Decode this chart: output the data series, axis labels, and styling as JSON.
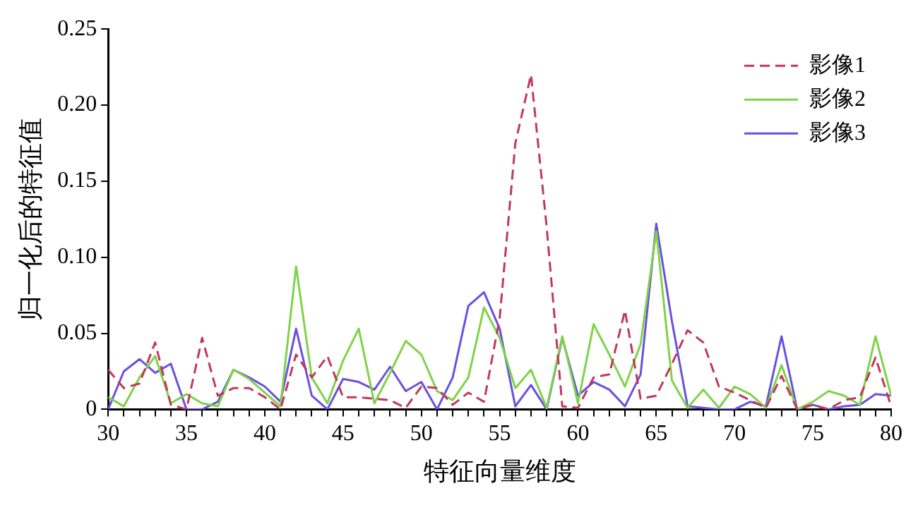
{
  "chart_data": {
    "type": "line",
    "xlabel": "特征向量维度",
    "ylabel": "归一化后的特征值",
    "x": [
      30,
      31,
      32,
      33,
      34,
      35,
      36,
      37,
      38,
      39,
      40,
      41,
      42,
      43,
      44,
      45,
      46,
      47,
      48,
      49,
      50,
      51,
      52,
      53,
      54,
      55,
      56,
      57,
      58,
      59,
      60,
      61,
      62,
      63,
      64,
      65,
      66,
      67,
      68,
      69,
      70,
      71,
      72,
      73,
      74,
      75,
      76,
      77,
      78,
      79,
      80
    ],
    "series": [
      {
        "name": "影像1",
        "color": "#c2385c",
        "line_style": "dashed",
        "values": [
          0.026,
          0.014,
          0.017,
          0.044,
          0.003,
          0,
          0.047,
          0.009,
          0.014,
          0.014,
          0.008,
          0,
          0.036,
          0.021,
          0.035,
          0.008,
          0.008,
          0.007,
          0.006,
          0.001,
          0.015,
          0.014,
          0.003,
          0.011,
          0.005,
          0.06,
          0.175,
          0.22,
          0.12,
          0.002,
          0.001,
          0.021,
          0.023,
          0.065,
          0.007,
          0.009,
          0.03,
          0.052,
          0.044,
          0.015,
          0.011,
          0.006,
          0.001,
          0.022,
          0,
          0.003,
          0,
          0.006,
          0.008,
          0.034,
          0.002
        ]
      },
      {
        "name": "影像2",
        "color": "#7ed348",
        "line_style": "solid",
        "values": [
          0.008,
          0.002,
          0.021,
          0.035,
          0.004,
          0.01,
          0.004,
          0.002,
          0.026,
          0.02,
          0.011,
          0.002,
          0.094,
          0.021,
          0.004,
          0.032,
          0.053,
          0.004,
          0.024,
          0.045,
          0.036,
          0.012,
          0.006,
          0.021,
          0.067,
          0.047,
          0.014,
          0.026,
          0.001,
          0.048,
          0.004,
          0.056,
          0.036,
          0.015,
          0.043,
          0.117,
          0.019,
          0.001,
          0.013,
          0.001,
          0.015,
          0.01,
          0.001,
          0.029,
          0,
          0.005,
          0.012,
          0.009,
          0.003,
          0.048,
          0.009
        ]
      },
      {
        "name": "影像3",
        "color": "#6a50e0",
        "line_style": "solid",
        "values": [
          0,
          0.025,
          0.033,
          0.024,
          0.03,
          0,
          0,
          0.005,
          0.026,
          0.021,
          0.015,
          0.005,
          0.053,
          0.009,
          0,
          0.02,
          0.018,
          0.013,
          0.028,
          0.012,
          0.018,
          0,
          0.021,
          0.068,
          0.077,
          0.053,
          0.002,
          0.016,
          0,
          0.047,
          0.009,
          0.018,
          0.013,
          0.002,
          0.023,
          0.122,
          0.058,
          0.002,
          0.001,
          0,
          0,
          0.005,
          0.002,
          0.048,
          0,
          0.003,
          0,
          0.002,
          0.003,
          0.01,
          0.009
        ]
      }
    ],
    "xlim": [
      30,
      80
    ],
    "xticks": [
      30,
      {
        "value": 31,
        "label": null
      },
      {
        "value": 32,
        "label": null
      },
      {
        "value": 33,
        "label": null
      },
      {
        "value": 34,
        "label": null
      },
      35,
      {
        "value": 36,
        "label": null
      },
      {
        "value": 37,
        "label": null
      },
      {
        "value": 38,
        "label": null
      },
      {
        "value": 39,
        "label": null
      },
      40,
      {
        "value": 41,
        "label": null
      },
      {
        "value": 42,
        "label": null
      },
      {
        "value": 43,
        "label": null
      },
      {
        "value": 44,
        "label": null
      },
      45,
      {
        "value": 46,
        "label": null
      },
      {
        "value": 47,
        "label": null
      },
      {
        "value": 48,
        "label": null
      },
      {
        "value": 49,
        "label": null
      },
      50,
      {
        "value": 51,
        "label": null
      },
      {
        "value": 52,
        "label": null
      },
      {
        "value": 53,
        "label": null
      },
      {
        "value": 54,
        "label": null
      },
      55,
      {
        "value": 56,
        "label": null
      },
      {
        "value": 57,
        "label": null
      },
      {
        "value": 58,
        "label": null
      },
      {
        "value": 59,
        "label": null
      },
      60,
      {
        "value": 61,
        "label": null
      },
      {
        "value": 62,
        "label": null
      },
      {
        "value": 63,
        "label": null
      },
      {
        "value": 64,
        "label": null
      },
      65,
      {
        "value": 66,
        "label": null
      },
      {
        "value": 67,
        "label": null
      },
      {
        "value": 68,
        "label": null
      },
      {
        "value": 69,
        "label": null
      },
      70,
      {
        "value": 71,
        "label": null
      },
      {
        "value": 72,
        "label": null
      },
      {
        "value": 73,
        "label": null
      },
      {
        "value": 74,
        "label": null
      },
      75,
      {
        "value": 76,
        "label": null
      },
      {
        "value": 77,
        "label": null
      },
      {
        "value": 78,
        "label": null
      },
      {
        "value": 79,
        "label": null
      },
      80
    ],
    "ylim": [
      0,
      0.25
    ],
    "yticks": [
      0,
      0.05,
      {
        "value": 0.1,
        "label": "0.10"
      },
      0.15,
      {
        "value": 0.2,
        "label": "0.20"
      },
      0.25
    ],
    "grid": false,
    "legend": "top right",
    "marker": "none"
  }
}
